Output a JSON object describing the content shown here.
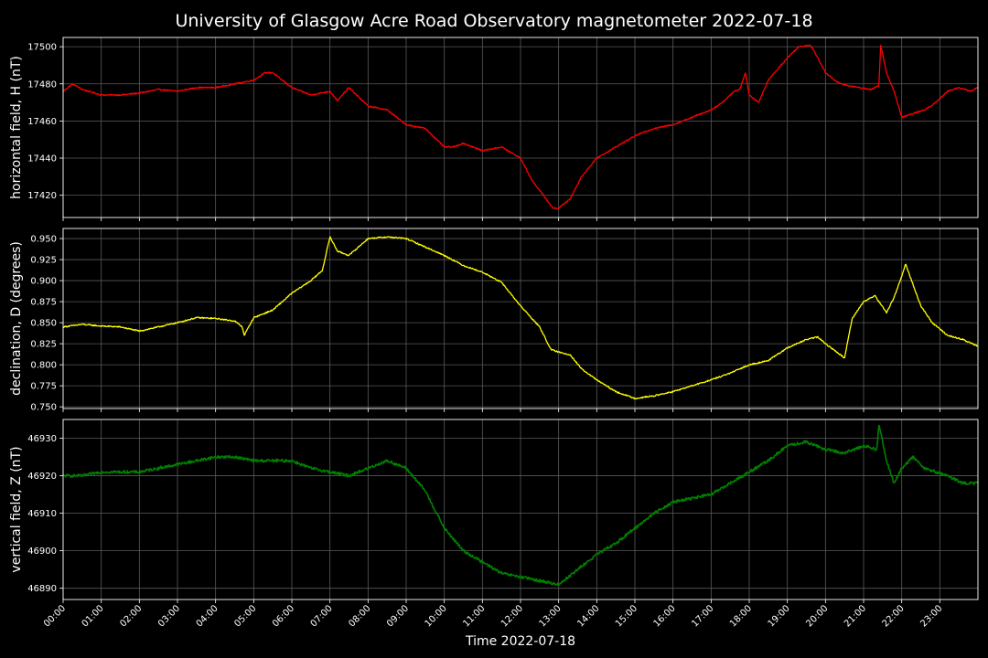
{
  "chart_data": {
    "type": "line",
    "title": "University of Glasgow Acre Road Observatory magnetometer 2022-07-18",
    "xlabel": "Time 2022-07-18",
    "x_unit": "hours since 00:00 on 2022-07-18",
    "x_range": [
      0,
      24
    ],
    "xtick_labels": [
      "00:00",
      "01:00",
      "02:00",
      "03:00",
      "04:00",
      "05:00",
      "06:00",
      "07:00",
      "08:00",
      "09:00",
      "10:00",
      "11:00",
      "12:00",
      "13:00",
      "14:00",
      "15:00",
      "16:00",
      "17:00",
      "18:00",
      "19:00",
      "20:00",
      "21:00",
      "22:00",
      "23:00"
    ],
    "grid": true,
    "background_color": "#000000",
    "panels": [
      {
        "ylabel": "horizontal field, H (nT)",
        "color": "#ff0000",
        "ylim": [
          17408,
          17505
        ],
        "yticks": [
          17420,
          17440,
          17460,
          17480,
          17500
        ],
        "ytick_labels": [
          "17420",
          "17440",
          "17460",
          "17480",
          "17500"
        ],
        "x": [
          0,
          0.25,
          0.5,
          1,
          1.5,
          2,
          2.5,
          3,
          3.5,
          4,
          4.5,
          5,
          5.3,
          5.5,
          6,
          6.5,
          7,
          7.2,
          7.5,
          8,
          8.5,
          9,
          9.5,
          10,
          10.25,
          10.5,
          11,
          11.5,
          12,
          12.3,
          12.6,
          12.85,
          13,
          13.3,
          13.6,
          14,
          14.5,
          15,
          15.5,
          16,
          16.5,
          17,
          17.3,
          17.6,
          17.75,
          17.9,
          18,
          18.25,
          18.5,
          18.75,
          19,
          19.3,
          19.6,
          19.75,
          20,
          20.3,
          20.6,
          20.9,
          21.2,
          21.4,
          21.45,
          21.6,
          21.8,
          22,
          22.3,
          22.6,
          22.9,
          23.2,
          23.5,
          23.8,
          24
        ],
        "y": [
          17476,
          17480,
          17477,
          17474,
          17474,
          17475,
          17477,
          17476,
          17478,
          17478,
          17480,
          17482,
          17486,
          17486,
          17478,
          17474,
          17476,
          17471,
          17478,
          17468,
          17466,
          17458,
          17456,
          17446,
          17446,
          17448,
          17444,
          17446,
          17440,
          17428,
          17420,
          17413,
          17413,
          17418,
          17430,
          17440,
          17446,
          17452,
          17456,
          17458,
          17462,
          17466,
          17470,
          17476,
          17477,
          17486,
          17474,
          17470,
          17482,
          17488,
          17494,
          17500,
          17501,
          17496,
          17486,
          17481,
          17479,
          17478,
          17477,
          17479,
          17501,
          17486,
          17476,
          17462,
          17464,
          17466,
          17470,
          17476,
          17478,
          17476,
          17478
        ]
      },
      {
        "ylabel": "declination, D (degrees)",
        "color": "#ffff00",
        "ylim": [
          0.748,
          0.962
        ],
        "yticks": [
          0.75,
          0.775,
          0.8,
          0.825,
          0.85,
          0.875,
          0.9,
          0.925,
          0.95
        ],
        "ytick_labels": [
          "0.750",
          "0.775",
          "0.800",
          "0.825",
          "0.850",
          "0.875",
          "0.900",
          "0.925",
          "0.950"
        ],
        "x": [
          0,
          0.5,
          1,
          1.5,
          2,
          2.5,
          3,
          3.5,
          4,
          4.5,
          4.7,
          4.75,
          5,
          5.5,
          6,
          6.5,
          6.8,
          7,
          7.2,
          7.5,
          8,
          8.5,
          9,
          9.5,
          10,
          10.5,
          11,
          11.5,
          12,
          12.5,
          12.8,
          13,
          13.3,
          13.6,
          14,
          14.5,
          15,
          15.5,
          16,
          16.5,
          17,
          17.5,
          18,
          18.5,
          19,
          19.5,
          19.8,
          20,
          20.3,
          20.5,
          20.7,
          21,
          21.3,
          21.6,
          21.8,
          22,
          22.1,
          22.5,
          22.8,
          23.2,
          23.6,
          24
        ],
        "y": [
          0.845,
          0.848,
          0.846,
          0.845,
          0.84,
          0.845,
          0.85,
          0.856,
          0.855,
          0.852,
          0.845,
          0.835,
          0.856,
          0.865,
          0.885,
          0.9,
          0.912,
          0.952,
          0.935,
          0.93,
          0.95,
          0.952,
          0.95,
          0.94,
          0.93,
          0.918,
          0.91,
          0.898,
          0.87,
          0.845,
          0.818,
          0.815,
          0.812,
          0.795,
          0.782,
          0.768,
          0.76,
          0.763,
          0.768,
          0.775,
          0.782,
          0.79,
          0.8,
          0.805,
          0.82,
          0.83,
          0.833,
          0.825,
          0.815,
          0.808,
          0.855,
          0.875,
          0.882,
          0.862,
          0.88,
          0.905,
          0.92,
          0.87,
          0.85,
          0.835,
          0.83,
          0.822
        ]
      },
      {
        "ylabel": "vertical field, Z (nT)",
        "color": "#008000",
        "ylim": [
          46887,
          46935
        ],
        "yticks": [
          46890,
          46900,
          46910,
          46920,
          46930
        ],
        "ytick_labels": [
          "46890",
          "46900",
          "46910",
          "46920",
          "46930"
        ],
        "x": [
          0,
          0.5,
          1,
          1.5,
          2,
          2.5,
          3,
          3.5,
          4,
          4.5,
          5,
          5.5,
          6,
          6.5,
          7,
          7.5,
          8,
          8.5,
          9,
          9.5,
          10,
          10.5,
          11,
          11.5,
          12,
          12.5,
          13,
          13.5,
          14,
          14.5,
          15,
          15.5,
          16,
          16.5,
          17,
          17.5,
          18,
          18.5,
          19,
          19.5,
          20,
          20.5,
          21,
          21.35,
          21.4,
          21.6,
          21.8,
          22,
          22.3,
          22.6,
          22.9,
          23.2,
          23.6,
          24
        ],
        "y": [
          46920,
          46920,
          46921,
          46921,
          46921,
          46922,
          46923,
          46924,
          46925,
          46925,
          46924,
          46924,
          46924,
          46922,
          46921,
          46920,
          46922,
          46924,
          46922,
          46916,
          46906,
          46900,
          46897,
          46894,
          46893,
          46892,
          46891,
          46895,
          46899,
          46902,
          46906,
          46910,
          46913,
          46914,
          46915,
          46918,
          46921,
          46924,
          46928,
          46929,
          46927,
          46926,
          46928,
          46927,
          46934,
          46924,
          46918,
          46922,
          46925,
          46922,
          46921,
          46920,
          46918,
          46918
        ]
      }
    ]
  }
}
